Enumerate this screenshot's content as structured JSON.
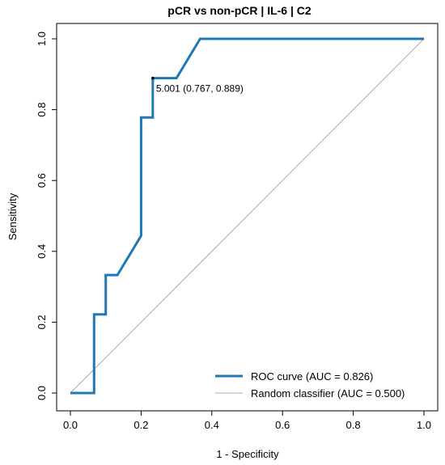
{
  "chart_data": {
    "type": "line",
    "title": "pCR vs non-pCR | IL-6 | C2",
    "xlabel": "1 - Specificity",
    "ylabel": "Sensitivity",
    "xlim": [
      0,
      1
    ],
    "ylim": [
      0,
      1
    ],
    "x_ticks": [
      "0.0",
      "0.2",
      "0.4",
      "0.6",
      "0.8",
      "1.0"
    ],
    "y_ticks": [
      "0.0",
      "0.2",
      "0.4",
      "0.6",
      "0.8",
      "1.0"
    ],
    "grid": false,
    "legend_position": "bottom-right",
    "series": [
      {
        "name": "ROC curve (AUC = 0.826)",
        "color": "#1f77b4",
        "x": [
          0,
          0.067,
          0.067,
          0.1,
          0.1,
          0.133,
          0.2,
          0.2,
          0.233,
          0.233,
          0.3,
          0.367,
          1.0
        ],
        "y": [
          0,
          0,
          0.222,
          0.222,
          0.333,
          0.333,
          0.444,
          0.778,
          0.778,
          0.889,
          0.889,
          1.0,
          1.0
        ]
      },
      {
        "name": "Random classifier (AUC = 0.500)",
        "color": "#aaaaaa",
        "x": [
          0,
          1
        ],
        "y": [
          0,
          1
        ]
      }
    ],
    "annotations": [
      {
        "x": 0.233,
        "y": 0.889,
        "text": "5.001 (0.767, 0.889)"
      }
    ]
  }
}
